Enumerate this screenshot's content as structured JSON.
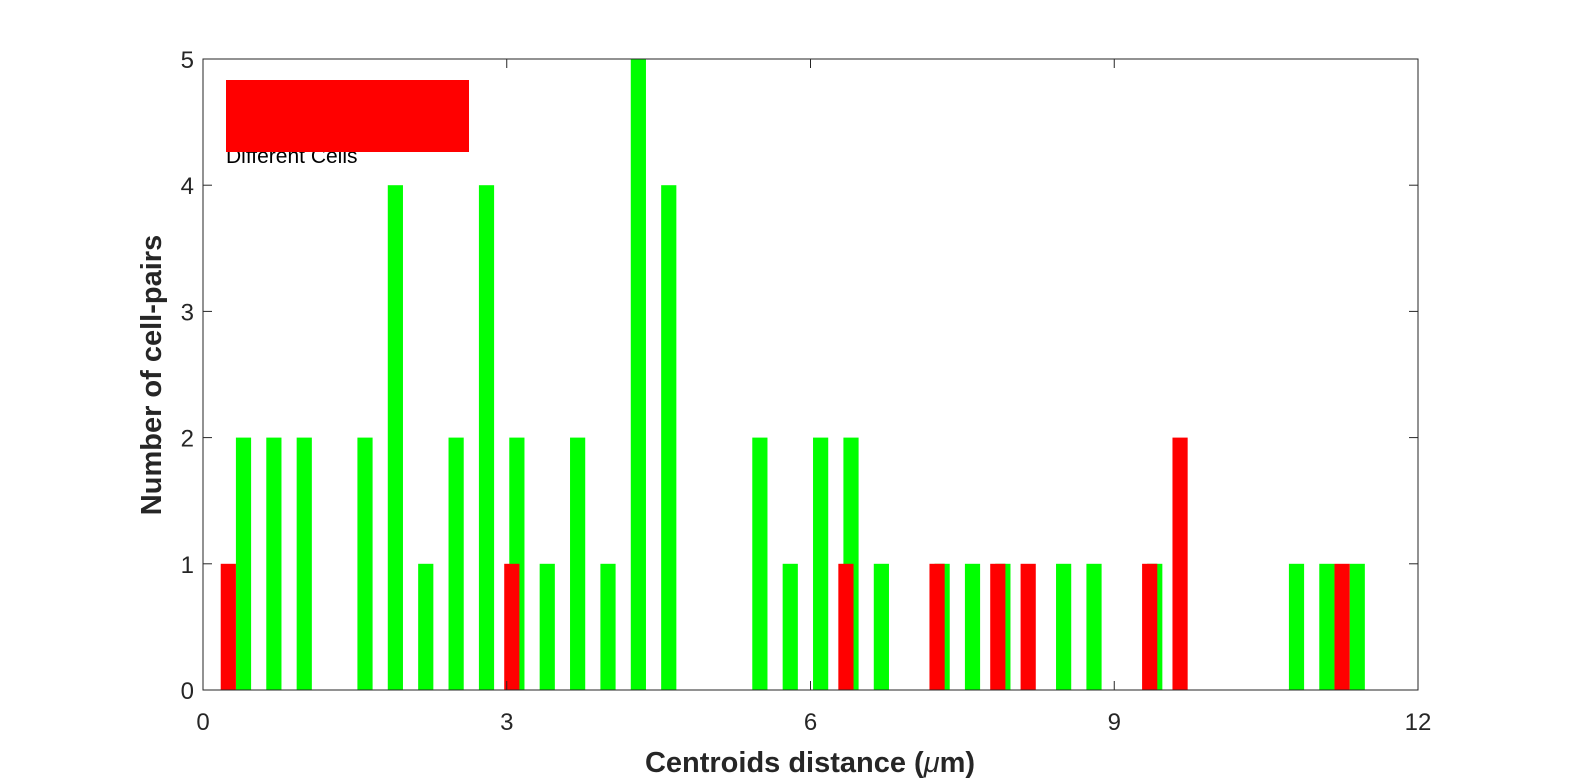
{
  "chart_data": {
    "type": "bar",
    "xlabel_prefix": "Centroids distance (",
    "xlabel_unit": "μ",
    "xlabel_suffix": "m)",
    "ylabel": "Number of cell-pairs",
    "xlim": [
      0,
      12
    ],
    "ylim": [
      0,
      5
    ],
    "xticks": [
      0,
      3,
      6,
      9,
      12
    ],
    "yticks": [
      0,
      1,
      2,
      3,
      4,
      5
    ],
    "bin_width": 0.3,
    "grid": false,
    "legend": {
      "placement": "top-left",
      "entries": [
        {
          "label": "Different Cells",
          "color": "#ff0000"
        }
      ]
    },
    "series": [
      {
        "color": "#00ff00",
        "x": [
          0.4,
          0.7,
          1.0,
          1.6,
          1.9,
          2.2,
          2.5,
          2.8,
          3.1,
          3.4,
          3.7,
          4.0,
          4.3,
          4.6,
          5.5,
          5.8,
          6.1,
          6.4,
          6.7,
          7.3,
          7.6,
          7.9,
          8.5,
          8.8,
          9.4,
          10.8,
          11.1,
          11.4
        ],
        "values": [
          2,
          2,
          2,
          2,
          4,
          1,
          2,
          4,
          2,
          1,
          2,
          1,
          5,
          4,
          2,
          1,
          2,
          2,
          1,
          1,
          1,
          1,
          1,
          1,
          1,
          1,
          1,
          1
        ]
      },
      {
        "name": "Different Cells",
        "color": "#ff0000",
        "x": [
          0.25,
          3.05,
          6.35,
          7.25,
          7.85,
          8.15,
          9.35,
          9.65,
          11.25
        ],
        "values": [
          1,
          1,
          1,
          1,
          1,
          1,
          1,
          2,
          1
        ]
      }
    ]
  }
}
